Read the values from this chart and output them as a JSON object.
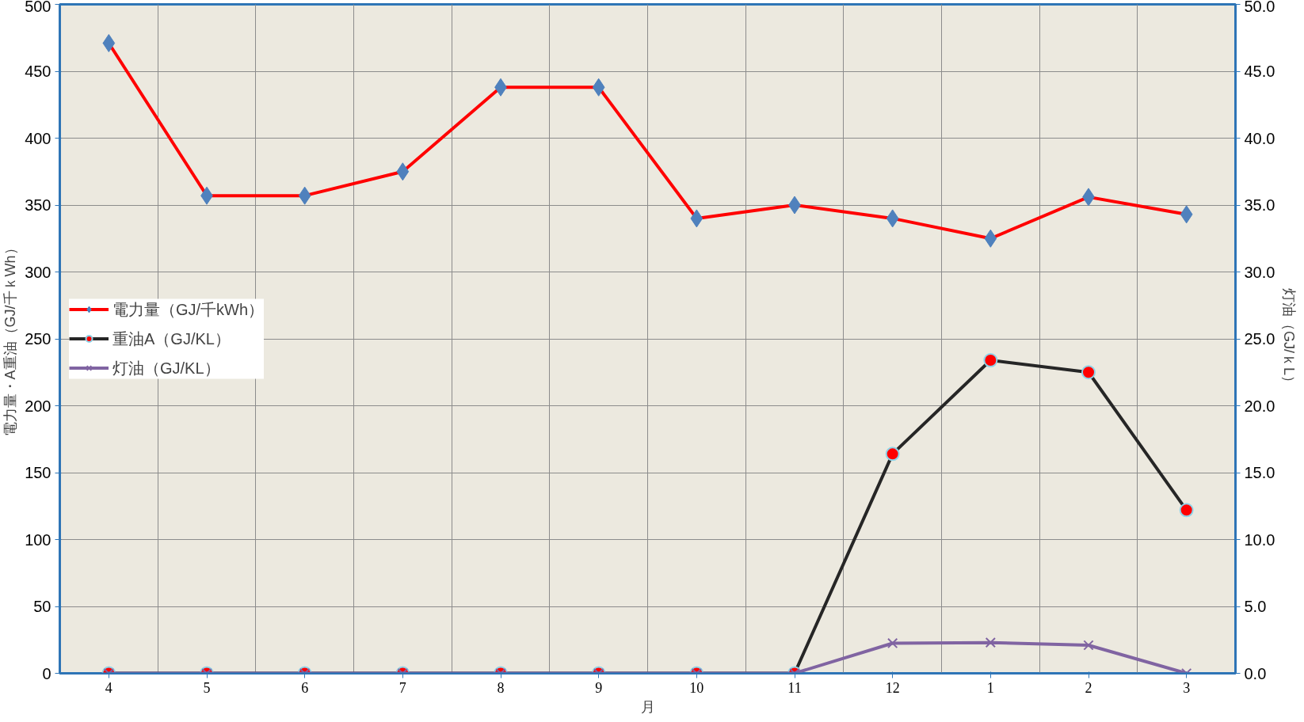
{
  "chart_data": {
    "type": "line",
    "xlabel": "月",
    "ylabel": "電力量・A重油（GJ/千ｋWh）",
    "y2label": "灯油（GJ/ｋL）",
    "categories": [
      "4",
      "5",
      "6",
      "7",
      "8",
      "9",
      "10",
      "11",
      "12",
      "1",
      "2",
      "3"
    ],
    "series": [
      {
        "name": "電力量（GJ/千kWh）",
        "color": "#ff0000",
        "marker": "diamond",
        "values": [
          471,
          357,
          357,
          375,
          438,
          438,
          340,
          350,
          340,
          325,
          356,
          343
        ]
      },
      {
        "name": "重油A（GJ/KL）",
        "color": "#262626",
        "marker": "circle",
        "values": [
          0,
          0,
          0,
          0,
          0,
          0,
          0,
          0,
          164,
          234,
          225,
          122
        ]
      },
      {
        "name": "灯油（GJ/KL）",
        "color": "#8064a2",
        "marker": "cross",
        "axis": "y2",
        "values": [
          0,
          0,
          0,
          0,
          0,
          0,
          0,
          0,
          2.25,
          2.3,
          2.1,
          0
        ]
      }
    ],
    "ylim": [
      0,
      500
    ],
    "yticks": [
      0,
      50,
      100,
      150,
      200,
      250,
      300,
      350,
      400,
      450,
      500
    ],
    "y2lim": [
      0,
      50
    ],
    "y2ticks": [
      {
        "value": 0,
        "label": "0.0"
      },
      {
        "value": 5,
        "label": "5.0"
      },
      {
        "value": 10,
        "label": "10.0"
      },
      {
        "value": 15,
        "label": "15.0"
      },
      {
        "value": 20,
        "label": "20.0"
      },
      {
        "value": 25,
        "label": "25.0"
      },
      {
        "value": 30,
        "label": "30.0"
      },
      {
        "value": 35,
        "label": "35.0"
      },
      {
        "value": 40,
        "label": "40.0"
      },
      {
        "value": 45,
        "label": "45.0"
      },
      {
        "value": 50,
        "label": "50.0"
      }
    ],
    "grid": true,
    "legend": "left",
    "line_style": "solid"
  }
}
